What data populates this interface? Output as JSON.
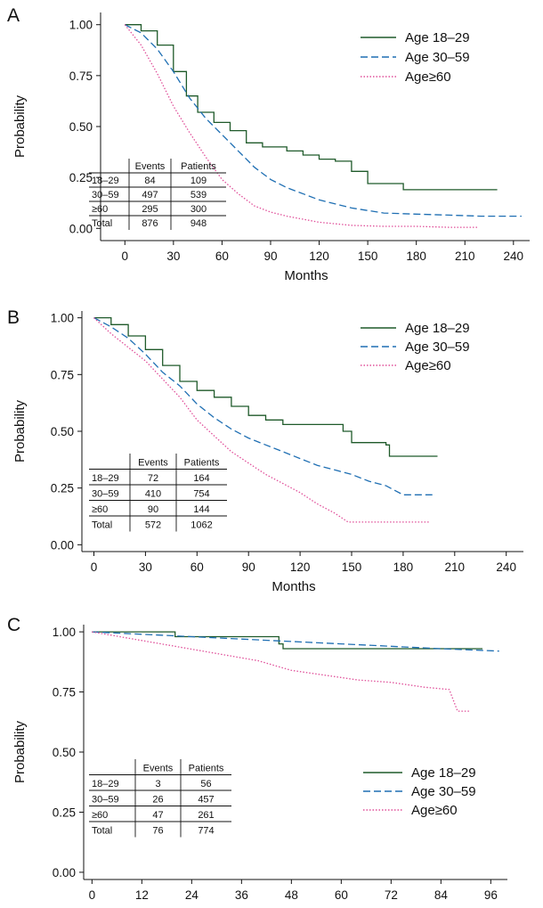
{
  "chart_data": [
    {
      "panel": "A",
      "type": "line",
      "xlabel": "Months",
      "ylabel": "Probability",
      "xlim": [
        -15,
        250
      ],
      "ylim": [
        -0.06,
        1.06
      ],
      "xticks": [
        0,
        30,
        60,
        90,
        120,
        150,
        180,
        210,
        240
      ],
      "yticks": [
        "0.00",
        "0.25",
        "0.50",
        "0.75",
        "1.00"
      ],
      "legend": "top-right",
      "series": [
        {
          "name": "Age 18–29",
          "color": "#1f5a2a",
          "dash": "solid",
          "step": true,
          "points": [
            [
              0,
              1.0
            ],
            [
              10,
              0.97
            ],
            [
              20,
              0.9
            ],
            [
              30,
              0.77
            ],
            [
              38,
              0.65
            ],
            [
              45,
              0.57
            ],
            [
              55,
              0.52
            ],
            [
              65,
              0.48
            ],
            [
              75,
              0.42
            ],
            [
              85,
              0.4
            ],
            [
              100,
              0.38
            ],
            [
              110,
              0.36
            ],
            [
              120,
              0.34
            ],
            [
              130,
              0.33
            ],
            [
              140,
              0.28
            ],
            [
              150,
              0.22
            ],
            [
              160,
              0.22
            ],
            [
              172,
              0.19
            ],
            [
              230,
              0.19
            ]
          ]
        },
        {
          "name": "Age 30–59",
          "color": "#1f6fb3",
          "dash": "8 4",
          "step": false,
          "points": [
            [
              0,
              1.0
            ],
            [
              10,
              0.96
            ],
            [
              20,
              0.88
            ],
            [
              30,
              0.77
            ],
            [
              40,
              0.64
            ],
            [
              50,
              0.54
            ],
            [
              60,
              0.46
            ],
            [
              70,
              0.38
            ],
            [
              80,
              0.3
            ],
            [
              90,
              0.24
            ],
            [
              100,
              0.2
            ],
            [
              120,
              0.14
            ],
            [
              140,
              0.1
            ],
            [
              160,
              0.075
            ],
            [
              180,
              0.07
            ],
            [
              200,
              0.065
            ],
            [
              220,
              0.06
            ],
            [
              245,
              0.06
            ]
          ]
        },
        {
          "name": "Age≥60",
          "color": "#e0509a",
          "dash": "1.5 2",
          "step": false,
          "points": [
            [
              0,
              1.0
            ],
            [
              10,
              0.9
            ],
            [
              20,
              0.76
            ],
            [
              30,
              0.6
            ],
            [
              40,
              0.47
            ],
            [
              50,
              0.35
            ],
            [
              60,
              0.24
            ],
            [
              70,
              0.17
            ],
            [
              80,
              0.11
            ],
            [
              90,
              0.08
            ],
            [
              100,
              0.06
            ],
            [
              120,
              0.03
            ],
            [
              140,
              0.015
            ],
            [
              160,
              0.01
            ],
            [
              180,
              0.01
            ],
            [
              200,
              0.005
            ],
            [
              218,
              0.005
            ]
          ]
        }
      ],
      "table": {
        "headers": [
          "",
          "Events",
          "Patients"
        ],
        "rows": [
          [
            "18–29",
            "84",
            "109"
          ],
          [
            "30–59",
            "497",
            "539"
          ],
          [
            "≥60",
            "295",
            "300"
          ],
          [
            "Total",
            "876",
            "948"
          ]
        ]
      }
    },
    {
      "panel": "B",
      "type": "line",
      "xlabel": "Months",
      "ylabel": "Probability",
      "xlim": [
        -7,
        250
      ],
      "ylim": [
        -0.03,
        1.03
      ],
      "xticks": [
        0,
        30,
        60,
        90,
        120,
        150,
        180,
        210,
        240
      ],
      "yticks": [
        "0.00",
        "0.25",
        "0.50",
        "0.75",
        "1.00"
      ],
      "legend": "top-right",
      "series": [
        {
          "name": "Age 18–29",
          "color": "#1f5a2a",
          "dash": "solid",
          "step": true,
          "points": [
            [
              0,
              1.0
            ],
            [
              10,
              0.97
            ],
            [
              20,
              0.92
            ],
            [
              30,
              0.86
            ],
            [
              40,
              0.79
            ],
            [
              50,
              0.72
            ],
            [
              60,
              0.68
            ],
            [
              70,
              0.65
            ],
            [
              80,
              0.61
            ],
            [
              90,
              0.57
            ],
            [
              100,
              0.55
            ],
            [
              110,
              0.53
            ],
            [
              120,
              0.53
            ],
            [
              140,
              0.53
            ],
            [
              145,
              0.5
            ],
            [
              150,
              0.45
            ],
            [
              170,
              0.44
            ],
            [
              172,
              0.39
            ],
            [
              200,
              0.39
            ]
          ]
        },
        {
          "name": "Age 30–59",
          "color": "#1f6fb3",
          "dash": "8 4",
          "step": false,
          "points": [
            [
              0,
              1.0
            ],
            [
              10,
              0.96
            ],
            [
              20,
              0.91
            ],
            [
              30,
              0.84
            ],
            [
              40,
              0.76
            ],
            [
              50,
              0.7
            ],
            [
              60,
              0.62
            ],
            [
              70,
              0.56
            ],
            [
              80,
              0.51
            ],
            [
              90,
              0.47
            ],
            [
              100,
              0.44
            ],
            [
              110,
              0.41
            ],
            [
              120,
              0.38
            ],
            [
              130,
              0.35
            ],
            [
              140,
              0.33
            ],
            [
              150,
              0.31
            ],
            [
              160,
              0.28
            ],
            [
              170,
              0.26
            ],
            [
              180,
              0.22
            ],
            [
              197,
              0.22
            ]
          ]
        },
        {
          "name": "Age≥60",
          "color": "#e0509a",
          "dash": "1.5 2",
          "step": false,
          "points": [
            [
              0,
              1.0
            ],
            [
              10,
              0.93
            ],
            [
              20,
              0.87
            ],
            [
              30,
              0.81
            ],
            [
              40,
              0.73
            ],
            [
              50,
              0.65
            ],
            [
              60,
              0.55
            ],
            [
              70,
              0.48
            ],
            [
              80,
              0.41
            ],
            [
              90,
              0.36
            ],
            [
              100,
              0.31
            ],
            [
              110,
              0.27
            ],
            [
              120,
              0.23
            ],
            [
              130,
              0.18
            ],
            [
              140,
              0.14
            ],
            [
              148,
              0.1
            ],
            [
              195,
              0.1
            ]
          ]
        }
      ],
      "table": {
        "headers": [
          "",
          "Events",
          "Patients"
        ],
        "rows": [
          [
            "18–29",
            "72",
            "164"
          ],
          [
            "30–59",
            "410",
            "754"
          ],
          [
            "≥60",
            "90",
            "144"
          ],
          [
            "Total",
            "572",
            "1062"
          ]
        ]
      }
    },
    {
      "panel": "C",
      "type": "line",
      "xlabel": "Months",
      "ylabel": "Probability",
      "xlim": [
        -2,
        100
      ],
      "ylim": [
        -0.03,
        1.03
      ],
      "xticks": [
        0,
        12,
        24,
        36,
        48,
        60,
        72,
        84,
        96
      ],
      "yticks": [
        "0.00",
        "0.25",
        "0.50",
        "0.75",
        "1.00"
      ],
      "legend": "bottom-right",
      "series": [
        {
          "name": "Age 18–29",
          "color": "#1f5a2a",
          "dash": "solid",
          "step": true,
          "points": [
            [
              0,
              1.0
            ],
            [
              20,
              1.0
            ],
            [
              20,
              0.98
            ],
            [
              36,
              0.98
            ],
            [
              45,
              0.95
            ],
            [
              46,
              0.93
            ],
            [
              94,
              0.93
            ]
          ]
        },
        {
          "name": "Age 30–59",
          "color": "#1f6fb3",
          "dash": "8 4",
          "step": false,
          "points": [
            [
              0,
              1.0
            ],
            [
              12,
              0.99
            ],
            [
              24,
              0.98
            ],
            [
              36,
              0.97
            ],
            [
              48,
              0.96
            ],
            [
              60,
              0.95
            ],
            [
              72,
              0.94
            ],
            [
              84,
              0.93
            ],
            [
              98,
              0.92
            ]
          ]
        },
        {
          "name": "Age≥60",
          "color": "#e0509a",
          "dash": "1.5 2",
          "step": false,
          "points": [
            [
              0,
              1.0
            ],
            [
              10,
              0.97
            ],
            [
              20,
              0.94
            ],
            [
              30,
              0.91
            ],
            [
              40,
              0.88
            ],
            [
              48,
              0.84
            ],
            [
              56,
              0.82
            ],
            [
              64,
              0.8
            ],
            [
              72,
              0.79
            ],
            [
              80,
              0.77
            ],
            [
              86,
              0.76
            ],
            [
              88,
              0.67
            ],
            [
              91,
              0.67
            ]
          ]
        }
      ],
      "table": {
        "headers": [
          "",
          "Events",
          "Patients"
        ],
        "rows": [
          [
            "18–29",
            "3",
            "56"
          ],
          [
            "30–59",
            "26",
            "457"
          ],
          [
            "≥60",
            "47",
            "261"
          ],
          [
            "Total",
            "76",
            "774"
          ]
        ]
      }
    }
  ]
}
